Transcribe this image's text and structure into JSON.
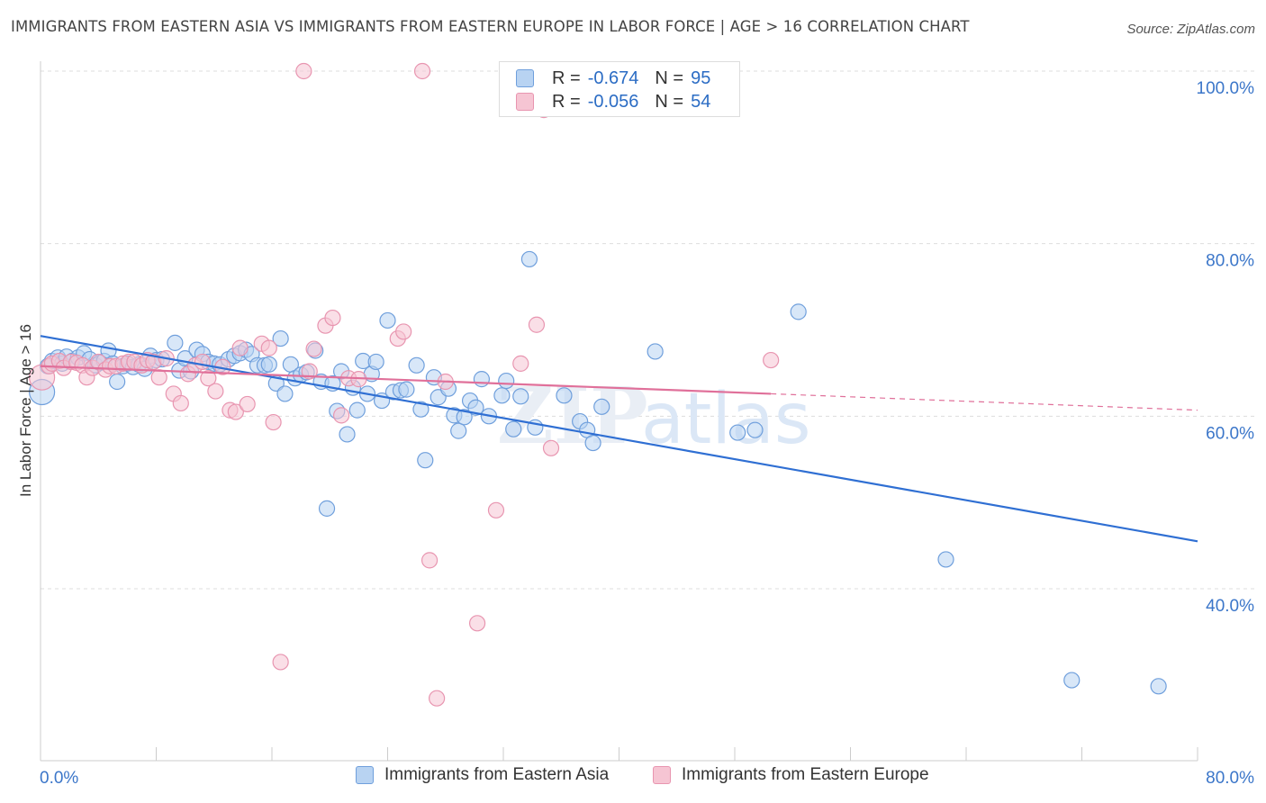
{
  "header": {
    "title": "IMMIGRANTS FROM EASTERN ASIA VS IMMIGRANTS FROM EASTERN EUROPE IN LABOR FORCE | AGE > 16 CORRELATION CHART",
    "source": "Source: ZipAtlas.com"
  },
  "stats": {
    "row1": {
      "r_label": "R =",
      "r_value": "-0.674",
      "n_label": "N =",
      "n_value": "95"
    },
    "row2": {
      "r_label": "R =",
      "r_value": "-0.056",
      "n_label": "N =",
      "n_value": "54"
    }
  },
  "legend": {
    "series1": "Immigrants from Eastern Asia",
    "series2": "Immigrants from Eastern Europe"
  },
  "watermark": {
    "zip": "ZIP",
    "atlas": "atlas"
  },
  "colors": {
    "blue_fill": "#b8d3f2",
    "blue_stroke": "#6f9fdc",
    "blue_line": "#2f6fd3",
    "pink_fill": "#f6c5d3",
    "pink_stroke": "#e895b0",
    "pink_line": "#e0709a",
    "axis_label": "#3b76c9",
    "grid": "#dddddd"
  },
  "chart_data": {
    "type": "scatter",
    "title": "IMMIGRANTS FROM EASTERN ASIA VS IMMIGRANTS FROM EASTERN EUROPE IN LABOR FORCE | AGE > 16 CORRELATION CHART",
    "xlabel": "",
    "ylabel": "In Labor Force | Age > 16",
    "xlim": [
      0,
      80
    ],
    "ylim": [
      20,
      101
    ],
    "x_tick_labels": [
      "0.0%",
      "80.0%"
    ],
    "y_ticks": [
      40,
      60,
      80,
      100
    ],
    "y_tick_labels": [
      "40.0%",
      "60.0%",
      "80.0%",
      "100.0%"
    ],
    "grid": true,
    "legend_position": "bottom",
    "series": [
      {
        "name": "Immigrants from Eastern Asia",
        "color": "#6f9fdc",
        "trend": {
          "x": [
            0,
            80
          ],
          "y": [
            69.3,
            45.5
          ]
        },
        "points": [
          [
            0.1,
            62.8
          ],
          [
            0.5,
            65.8
          ],
          [
            0.8,
            66.4
          ],
          [
            1.2,
            66.8
          ],
          [
            1.5,
            66.1
          ],
          [
            1.8,
            66.9
          ],
          [
            2.2,
            66.4
          ],
          [
            2.6,
            66.8
          ],
          [
            3.0,
            67.3
          ],
          [
            3.4,
            66.6
          ],
          [
            3.8,
            65.9
          ],
          [
            4.1,
            66.2
          ],
          [
            4.4,
            66.4
          ],
          [
            4.7,
            67.6
          ],
          [
            5.0,
            66.1
          ],
          [
            5.3,
            64.0
          ],
          [
            5.7,
            65.8
          ],
          [
            6.0,
            66.1
          ],
          [
            6.4,
            65.7
          ],
          [
            6.8,
            66.0
          ],
          [
            7.2,
            65.5
          ],
          [
            7.6,
            67.0
          ],
          [
            8.0,
            66.5
          ],
          [
            8.4,
            66.6
          ],
          [
            9.3,
            68.5
          ],
          [
            9.6,
            65.3
          ],
          [
            10.0,
            66.7
          ],
          [
            10.4,
            65.2
          ],
          [
            10.8,
            67.7
          ],
          [
            11.2,
            67.2
          ],
          [
            11.6,
            66.3
          ],
          [
            12.0,
            66.1
          ],
          [
            12.4,
            66.0
          ],
          [
            13.0,
            66.6
          ],
          [
            13.4,
            67.0
          ],
          [
            13.8,
            67.3
          ],
          [
            14.2,
            67.7
          ],
          [
            14.6,
            67.2
          ],
          [
            15.0,
            65.9
          ],
          [
            15.5,
            65.9
          ],
          [
            15.8,
            66.0
          ],
          [
            16.3,
            63.8
          ],
          [
            16.6,
            69.0
          ],
          [
            16.9,
            62.6
          ],
          [
            17.3,
            66.0
          ],
          [
            17.6,
            64.4
          ],
          [
            18.0,
            64.8
          ],
          [
            18.4,
            65.1
          ],
          [
            19.0,
            67.6
          ],
          [
            19.4,
            64.0
          ],
          [
            19.8,
            49.3
          ],
          [
            20.2,
            63.8
          ],
          [
            20.5,
            60.6
          ],
          [
            20.8,
            65.2
          ],
          [
            21.2,
            57.9
          ],
          [
            21.6,
            63.3
          ],
          [
            21.9,
            60.7
          ],
          [
            22.3,
            66.4
          ],
          [
            22.6,
            62.6
          ],
          [
            22.9,
            64.9
          ],
          [
            23.2,
            66.3
          ],
          [
            23.6,
            61.8
          ],
          [
            24.0,
            71.1
          ],
          [
            24.4,
            62.8
          ],
          [
            24.9,
            63.0
          ],
          [
            25.3,
            63.1
          ],
          [
            26.0,
            65.9
          ],
          [
            26.3,
            60.8
          ],
          [
            26.6,
            54.9
          ],
          [
            27.2,
            64.5
          ],
          [
            27.5,
            62.2
          ],
          [
            28.2,
            63.2
          ],
          [
            28.6,
            60.1
          ],
          [
            28.9,
            58.3
          ],
          [
            29.3,
            59.9
          ],
          [
            29.7,
            61.8
          ],
          [
            30.1,
            61.0
          ],
          [
            30.5,
            64.3
          ],
          [
            31.0,
            60.0
          ],
          [
            31.9,
            62.4
          ],
          [
            32.2,
            64.1
          ],
          [
            32.7,
            58.5
          ],
          [
            33.2,
            62.3
          ],
          [
            33.8,
            78.2
          ],
          [
            34.2,
            58.7
          ],
          [
            36.2,
            62.4
          ],
          [
            37.3,
            59.4
          ],
          [
            37.8,
            58.4
          ],
          [
            38.2,
            56.9
          ],
          [
            38.8,
            61.1
          ],
          [
            42.5,
            67.5
          ],
          [
            48.2,
            58.1
          ],
          [
            49.4,
            58.4
          ],
          [
            52.4,
            72.1
          ],
          [
            62.6,
            43.4
          ],
          [
            71.3,
            29.4
          ],
          [
            77.3,
            28.7
          ]
        ]
      },
      {
        "name": "Immigrants from Eastern Europe",
        "color": "#e895b0",
        "trend": {
          "x": [
            0,
            50.5
          ],
          "y": [
            65.8,
            62.6
          ]
        },
        "trend_dashed": {
          "x": [
            50.5,
            80
          ],
          "y": [
            62.6,
            60.7
          ]
        },
        "points": [
          [
            0.1,
            64.5
          ],
          [
            0.6,
            65.8
          ],
          [
            0.8,
            66.1
          ],
          [
            1.3,
            66.4
          ],
          [
            1.6,
            65.6
          ],
          [
            2.1,
            66.3
          ],
          [
            2.5,
            66.2
          ],
          [
            2.9,
            65.9
          ],
          [
            3.2,
            64.5
          ],
          [
            3.6,
            65.6
          ],
          [
            4.0,
            66.3
          ],
          [
            4.5,
            65.4
          ],
          [
            4.8,
            65.8
          ],
          [
            5.2,
            65.8
          ],
          [
            5.7,
            66.1
          ],
          [
            6.1,
            66.3
          ],
          [
            6.5,
            66.3
          ],
          [
            7.0,
            65.9
          ],
          [
            7.4,
            66.5
          ],
          [
            7.8,
            66.3
          ],
          [
            8.2,
            64.5
          ],
          [
            8.7,
            66.7
          ],
          [
            9.2,
            62.6
          ],
          [
            9.7,
            61.5
          ],
          [
            10.2,
            64.9
          ],
          [
            10.7,
            65.9
          ],
          [
            11.2,
            66.3
          ],
          [
            11.6,
            64.4
          ],
          [
            12.1,
            62.9
          ],
          [
            12.6,
            65.7
          ],
          [
            13.1,
            60.7
          ],
          [
            13.5,
            60.5
          ],
          [
            13.8,
            67.9
          ],
          [
            14.3,
            61.4
          ],
          [
            15.3,
            68.4
          ],
          [
            15.8,
            67.9
          ],
          [
            16.1,
            59.3
          ],
          [
            16.6,
            31.5
          ],
          [
            18.2,
            100.0
          ],
          [
            18.6,
            65.2
          ],
          [
            18.9,
            67.8
          ],
          [
            19.7,
            70.5
          ],
          [
            20.2,
            71.4
          ],
          [
            20.8,
            60.1
          ],
          [
            21.3,
            64.4
          ],
          [
            22.0,
            64.3
          ],
          [
            24.7,
            69.0
          ],
          [
            25.1,
            69.8
          ],
          [
            26.4,
            100.0
          ],
          [
            26.9,
            43.3
          ],
          [
            27.4,
            27.3
          ],
          [
            28.0,
            64.0
          ],
          [
            30.2,
            36.0
          ],
          [
            31.5,
            49.1
          ],
          [
            33.2,
            66.1
          ],
          [
            34.3,
            70.6
          ],
          [
            34.8,
            95.5
          ],
          [
            35.3,
            56.3
          ],
          [
            50.5,
            66.5
          ]
        ]
      }
    ]
  }
}
